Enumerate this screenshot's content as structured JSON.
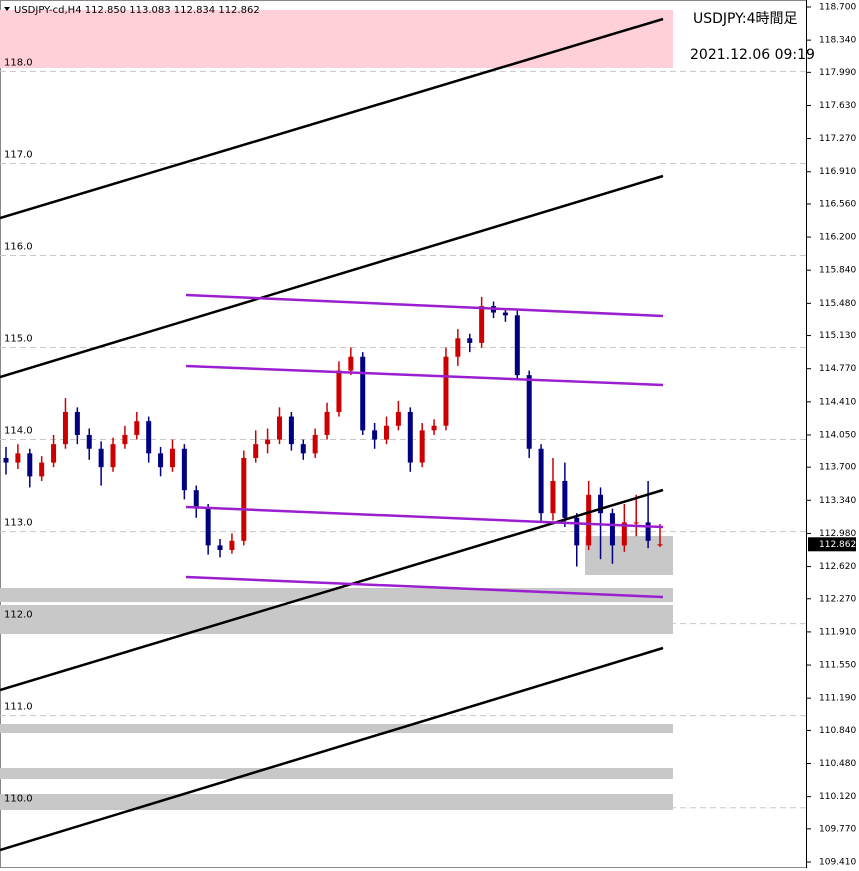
{
  "chart_data": {
    "type": "candlestick",
    "header": "USDJPY-cd,H4  112.850 113.083 112.834 112.862",
    "title": "USDJPY:4時間足",
    "timestamp": "2021.12.06 09:19",
    "up_color": "#cc0000",
    "down_color": "#000080",
    "ylim": [
      109.41,
      118.7
    ],
    "yticks": [
      {
        "value": 118.7,
        "label": "118.700"
      },
      {
        "value": 118.34,
        "label": "118.340"
      },
      {
        "value": 117.99,
        "label": "117.990"
      },
      {
        "value": 117.63,
        "label": "117.630"
      },
      {
        "value": 117.27,
        "label": "117.270"
      },
      {
        "value": 116.91,
        "label": "116.910"
      },
      {
        "value": 116.56,
        "label": "116.560"
      },
      {
        "value": 116.2,
        "label": "116.200"
      },
      {
        "value": 115.84,
        "label": "115.840"
      },
      {
        "value": 115.48,
        "label": "115.480"
      },
      {
        "value": 115.13,
        "label": "115.130"
      },
      {
        "value": 114.77,
        "label": "114.770"
      },
      {
        "value": 114.41,
        "label": "114.410"
      },
      {
        "value": 114.05,
        "label": "114.050"
      },
      {
        "value": 113.7,
        "label": "113.700"
      },
      {
        "value": 113.34,
        "label": "113.340"
      },
      {
        "value": 112.98,
        "label": "112.980"
      },
      {
        "value": 112.62,
        "label": "112.620"
      },
      {
        "value": 112.27,
        "label": "112.270"
      },
      {
        "value": 111.91,
        "label": "111.910"
      },
      {
        "value": 111.55,
        "label": "111.550"
      },
      {
        "value": 111.19,
        "label": "111.190"
      },
      {
        "value": 110.84,
        "label": "110.840"
      },
      {
        "value": 110.48,
        "label": "110.480"
      },
      {
        "value": 110.12,
        "label": "110.120"
      },
      {
        "value": 109.77,
        "label": "109.770"
      },
      {
        "value": 109.41,
        "label": "109.410"
      }
    ],
    "levels": [
      {
        "value": 118,
        "label": "118.0"
      },
      {
        "value": 117,
        "label": "117.0"
      },
      {
        "value": 116,
        "label": "116.0"
      },
      {
        "value": 115,
        "label": "115.0"
      },
      {
        "value": 114,
        "label": "114.0"
      },
      {
        "value": 113,
        "label": "113.0"
      },
      {
        "value": 112,
        "label": "112.0"
      },
      {
        "value": 111,
        "label": "111.0"
      },
      {
        "value": 110,
        "label": "110.0"
      }
    ],
    "current_price": {
      "value": 112.862,
      "label": "112.862"
    },
    "open": [
      113.8,
      113.75,
      113.85,
      113.6,
      113.75,
      113.95,
      114.3,
      114.05,
      113.9,
      113.7,
      113.95,
      114.05,
      114.2,
      113.85,
      113.7,
      113.9,
      113.45,
      113.25,
      112.85,
      112.8,
      112.9,
      113.8,
      113.95,
      114.0,
      114.25,
      113.95,
      113.85,
      114.05,
      114.3,
      114.75,
      114.9,
      114.1,
      114.0,
      114.15,
      114.3,
      113.75,
      114.1,
      114.15,
      114.9,
      115.1,
      115.05,
      115.45,
      115.38,
      115.35,
      114.7,
      113.9,
      113.2,
      113.55,
      113.15,
      112.85,
      113.4,
      113.2,
      112.85,
      113.1,
      113.1,
      112.85
    ],
    "high": [
      113.92,
      113.95,
      113.9,
      113.82,
      114.05,
      114.45,
      114.35,
      114.12,
      113.98,
      114.02,
      114.15,
      114.3,
      114.25,
      113.92,
      114.0,
      113.95,
      113.5,
      113.3,
      112.92,
      112.98,
      113.88,
      114.1,
      114.12,
      114.35,
      114.3,
      114.0,
      114.12,
      114.4,
      114.85,
      115.0,
      114.95,
      114.18,
      114.25,
      114.42,
      114.35,
      114.18,
      114.22,
      115.0,
      115.2,
      115.15,
      115.55,
      115.5,
      115.42,
      115.4,
      114.75,
      113.95,
      113.8,
      113.75,
      113.2,
      113.55,
      113.48,
      113.25,
      113.3,
      113.4,
      113.55,
      113.083
    ],
    "low": [
      113.62,
      113.68,
      113.48,
      113.55,
      113.7,
      113.9,
      113.95,
      113.78,
      113.5,
      113.65,
      113.9,
      114.0,
      113.75,
      113.6,
      113.65,
      113.35,
      113.15,
      112.75,
      112.72,
      112.76,
      112.85,
      113.75,
      113.85,
      113.95,
      113.88,
      113.78,
      113.8,
      114.0,
      114.25,
      114.7,
      114.05,
      113.9,
      113.95,
      114.1,
      113.65,
      113.7,
      114.05,
      114.1,
      114.8,
      114.95,
      115.0,
      115.32,
      115.28,
      114.65,
      113.8,
      113.1,
      113.12,
      113.05,
      112.62,
      112.8,
      112.7,
      112.65,
      112.78,
      112.95,
      112.82,
      112.834
    ],
    "close": [
      113.75,
      113.85,
      113.6,
      113.75,
      113.95,
      114.3,
      114.05,
      113.9,
      113.7,
      113.95,
      114.05,
      114.2,
      113.85,
      113.7,
      113.9,
      113.45,
      113.25,
      112.85,
      112.8,
      112.9,
      113.8,
      113.95,
      114.0,
      114.25,
      113.95,
      113.85,
      114.05,
      114.3,
      114.75,
      114.9,
      114.1,
      114.0,
      114.15,
      114.3,
      113.75,
      114.1,
      114.15,
      114.9,
      115.1,
      115.05,
      115.45,
      115.38,
      115.35,
      114.7,
      113.9,
      113.2,
      113.55,
      113.15,
      112.85,
      113.4,
      113.2,
      112.85,
      113.1,
      113.1,
      112.9,
      112.862
    ]
  }
}
